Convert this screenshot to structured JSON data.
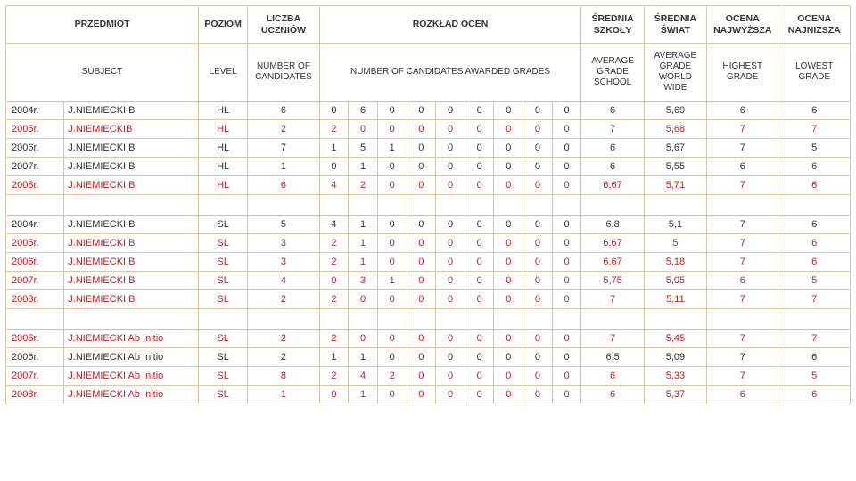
{
  "colors": {
    "border": "#d8c8a8",
    "text_default": "#333333",
    "text_red": "#c02020",
    "background": "#ffffff"
  },
  "typography": {
    "font_family": "Verdana, Arial, sans-serif",
    "body_size_pt": 8,
    "header_size_pt": 8,
    "header_weight": "bold"
  },
  "headers_pl": {
    "subject": "PRZEDMIOT",
    "level": "POZIOM",
    "candidates": "LICZBA UCZNIÓW",
    "grades_dist": "ROZKŁAD OCEN",
    "avg_school": "ŚREDNIA SZKOŁY",
    "avg_world": "ŚREDNIA ŚWIAT",
    "highest": "OCENA NAJWYŻSZA",
    "lowest": "OCENA NAJNIŻSZA"
  },
  "headers_en": {
    "subject": "SUBJECT",
    "level": "LEVEL",
    "candidates": "NUMBER OF CANDIDATES",
    "grades_dist": "NUMBER OF CANDIDATES AWARDED GRADES",
    "avg_school": "AVERAGE GRADE SCHOOL",
    "avg_world": "AVERAGE GRADE WORLD WIDE",
    "highest": "HIGHEST GRADE",
    "lowest": "LOWEST GRADE"
  },
  "groups": [
    {
      "rows": [
        {
          "color": "black",
          "year": "2004r.",
          "subject": "J.NIEMIECKI B",
          "level": "HL",
          "n": "6",
          "g": [
            "0",
            "6",
            "0",
            "0",
            "0",
            "0",
            "0",
            "0",
            "0"
          ],
          "avg_s": "6",
          "avg_w": "5,69",
          "hi": "6",
          "lo": "6"
        },
        {
          "color": "red",
          "year": "2005r.",
          "subject": "J.NIEMIECKIB",
          "level": "HL",
          "n": "2",
          "g": [
            "2",
            "0",
            "0",
            "0",
            "0",
            "0",
            "0",
            "0",
            "0"
          ],
          "avg_s": "7",
          "avg_w": "5,68",
          "hi": "7",
          "lo": "7"
        },
        {
          "color": "black",
          "year": "2006r.",
          "subject": "J.NIEMIECKI B",
          "level": "HL",
          "n": "7",
          "g": [
            "1",
            "5",
            "1",
            "0",
            "0",
            "0",
            "0",
            "0",
            "0"
          ],
          "avg_s": "6",
          "avg_w": "5,67",
          "hi": "7",
          "lo": "5"
        },
        {
          "color": "black",
          "year": "2007r.",
          "subject": "J.NIEMIECKI B",
          "level": "HL",
          "n": "1",
          "g": [
            "0",
            "1",
            "0",
            "0",
            "0",
            "0",
            "0",
            "0",
            "0"
          ],
          "avg_s": "6",
          "avg_w": "5,55",
          "hi": "6",
          "lo": "6"
        },
        {
          "color": "red",
          "year": "2008r.",
          "subject": "J.NIEMIECKI B",
          "level": "HL",
          "n": "6",
          "g": [
            "4",
            "2",
            "0",
            "0",
            "0",
            "0",
            "0",
            "0",
            "0"
          ],
          "avg_s": "6,67",
          "avg_w": "5,71",
          "hi": "7",
          "lo": "6"
        }
      ]
    },
    {
      "rows": [
        {
          "color": "black",
          "year": "2004r.",
          "subject": "J.NIEMIECKI B",
          "level": "SL",
          "n": "5",
          "g": [
            "4",
            "1",
            "0",
            "0",
            "0",
            "0",
            "0",
            "0",
            "0"
          ],
          "avg_s": "6,8",
          "avg_w": "5,1",
          "hi": "7",
          "lo": "6"
        },
        {
          "color": "red",
          "year": "2005r.",
          "subject": "J.NIEMIECKI B",
          "level": "SL",
          "n": "3",
          "g": [
            "2",
            "1",
            "0",
            "0",
            "0",
            "0",
            "0",
            "0",
            "0"
          ],
          "avg_s": "6,67",
          "avg_w": "5",
          "hi": "7",
          "lo": "6"
        },
        {
          "color": "red",
          "year": "2006r.",
          "subject": "J.NIEMIECKI B",
          "level": "SL",
          "n": "3",
          "g": [
            "2",
            "1",
            "0",
            "0",
            "0",
            "0",
            "0",
            "0",
            "0"
          ],
          "avg_s": "6,67",
          "avg_w": "5,18",
          "hi": "7",
          "lo": "6"
        },
        {
          "color": "red",
          "year": "2007r.",
          "subject": "J.NIEMIECKI B",
          "level": "SL",
          "n": "4",
          "g": [
            "0",
            "3",
            "1",
            "0",
            "0",
            "0",
            "0",
            "0",
            "0"
          ],
          "avg_s": "5,75",
          "avg_w": "5,05",
          "hi": "6",
          "lo": "5"
        },
        {
          "color": "red",
          "year": "2008r.",
          "subject": "J.NIEMIECKI B",
          "level": "SL",
          "n": "2",
          "g": [
            "2",
            "0",
            "0",
            "0",
            "0",
            "0",
            "0",
            "0",
            "0"
          ],
          "avg_s": "7",
          "avg_w": "5,11",
          "hi": "7",
          "lo": "7"
        }
      ]
    },
    {
      "rows": [
        {
          "color": "red",
          "year": "2005r.",
          "subject": "J.NIEMIECKI  Ab Initio",
          "level": "SL",
          "n": "2",
          "g": [
            "2",
            "0",
            "0",
            "0",
            "0",
            "0",
            "0",
            "0",
            "0"
          ],
          "avg_s": "7",
          "avg_w": "5,45",
          "hi": "7",
          "lo": "7"
        },
        {
          "color": "black",
          "year": "2006r.",
          "subject": "J.NIEMIECKI Ab Initio",
          "level": "SL",
          "n": "2",
          "g": [
            "1",
            "1",
            "0",
            "0",
            "0",
            "0",
            "0",
            "0",
            "0"
          ],
          "avg_s": "6,5",
          "avg_w": "5,09",
          "hi": "7",
          "lo": "6"
        },
        {
          "color": "red",
          "year": "2007r.",
          "subject": "J.NIEMIECKI Ab Initio",
          "level": "SL",
          "n": "8",
          "g": [
            "2",
            "4",
            "2",
            "0",
            "0",
            "0",
            "0",
            "0",
            "0"
          ],
          "avg_s": "6",
          "avg_w": "5,33",
          "hi": "7",
          "lo": "5"
        },
        {
          "color": "red",
          "year": "2008r.",
          "subject": "J.NIEMIECKI Ab Initio",
          "level": "SL",
          "n": "1",
          "g": [
            "0",
            "1",
            "0",
            "0",
            "0",
            "0",
            "0",
            "0",
            "0"
          ],
          "avg_s": "6",
          "avg_w": "5,37",
          "hi": "6",
          "lo": "6"
        }
      ]
    }
  ]
}
